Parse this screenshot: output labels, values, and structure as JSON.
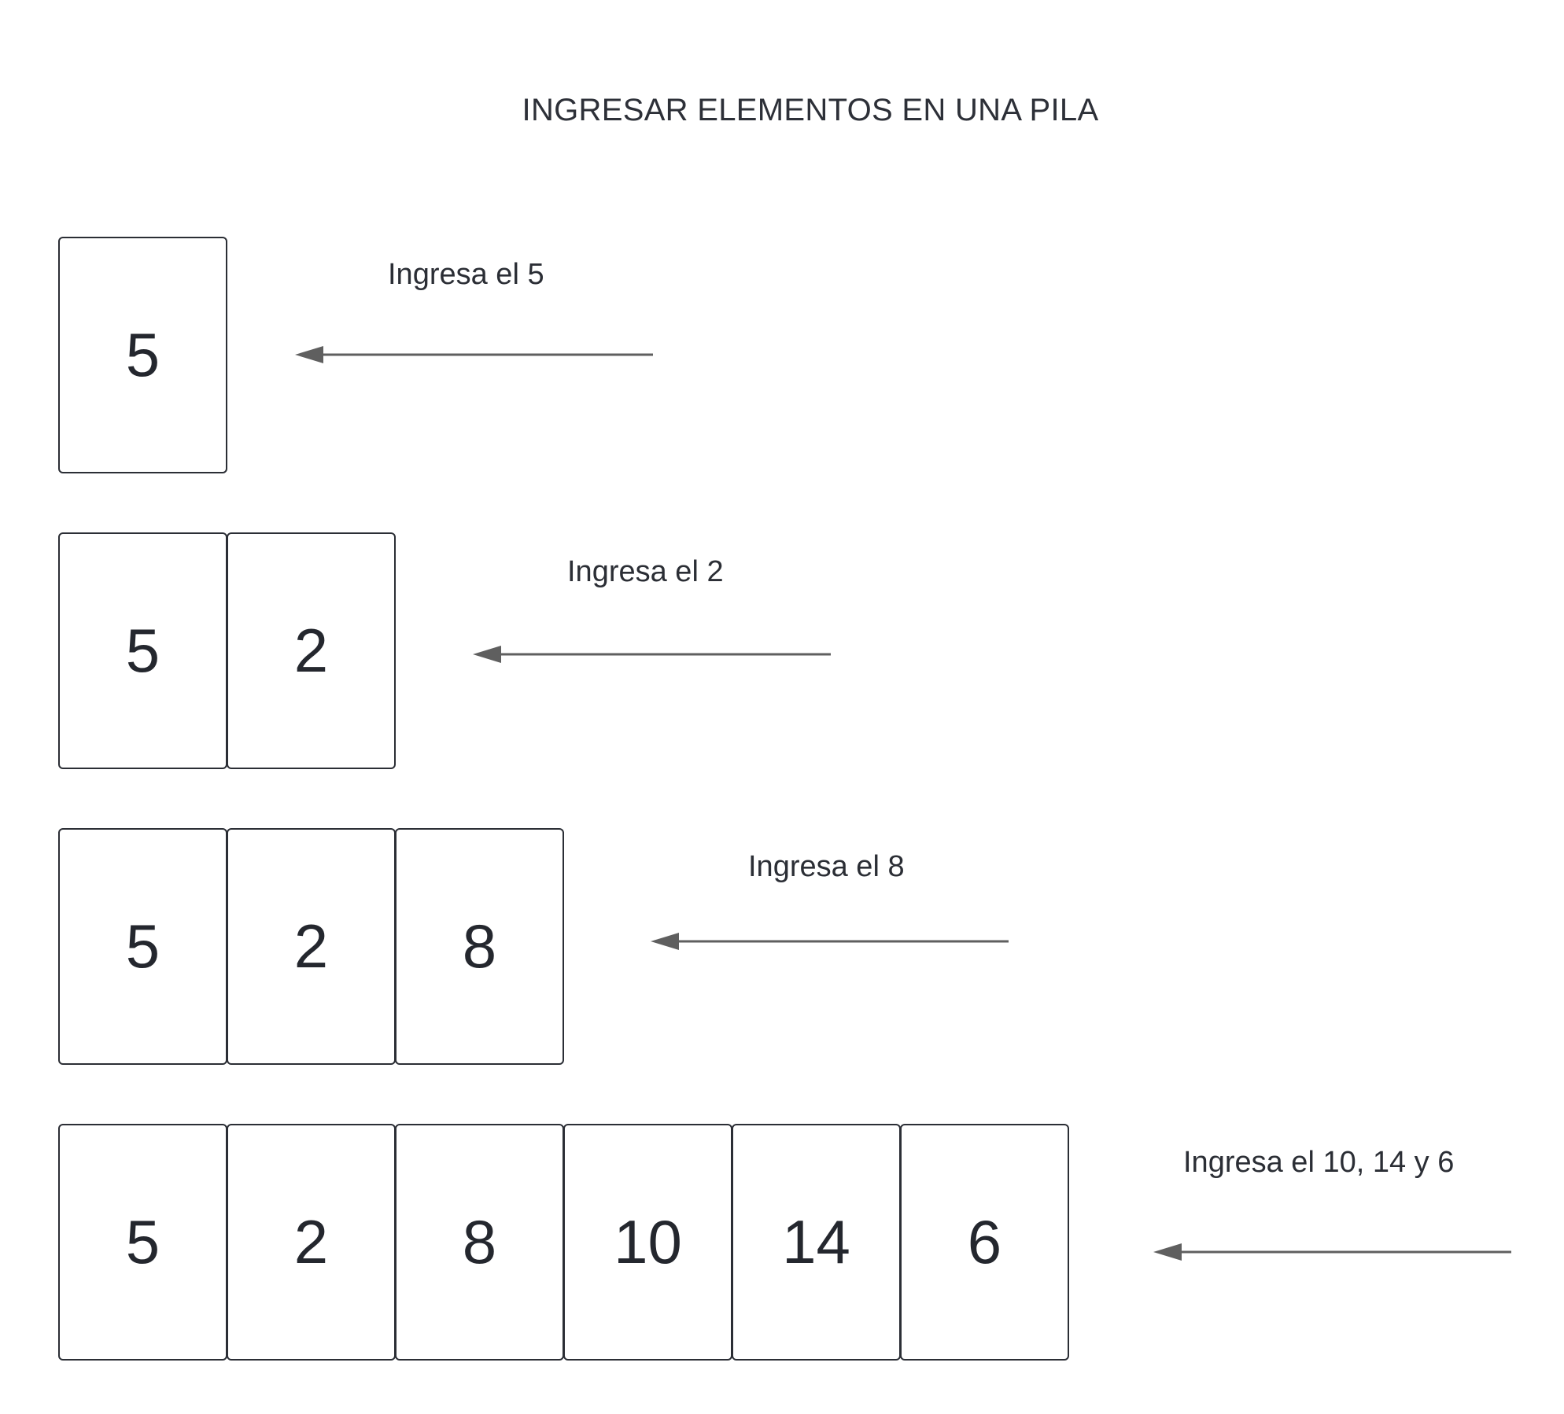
{
  "title": "INGRESAR ELEMENTOS EN UNA PILA",
  "steps": [
    {
      "label": "Ingresa el 5",
      "values": [
        "5"
      ]
    },
    {
      "label": "Ingresa el 2",
      "values": [
        "5",
        "2"
      ]
    },
    {
      "label": "Ingresa el 8",
      "values": [
        "5",
        "2",
        "8"
      ]
    },
    {
      "label": "Ingresa el 10, 14 y 6",
      "values": [
        "5",
        "2",
        "8",
        "10",
        "14",
        "6"
      ]
    }
  ],
  "colors": {
    "border": "#2b2e35",
    "arrow": "#5f5f5f",
    "text": "#282c33"
  }
}
